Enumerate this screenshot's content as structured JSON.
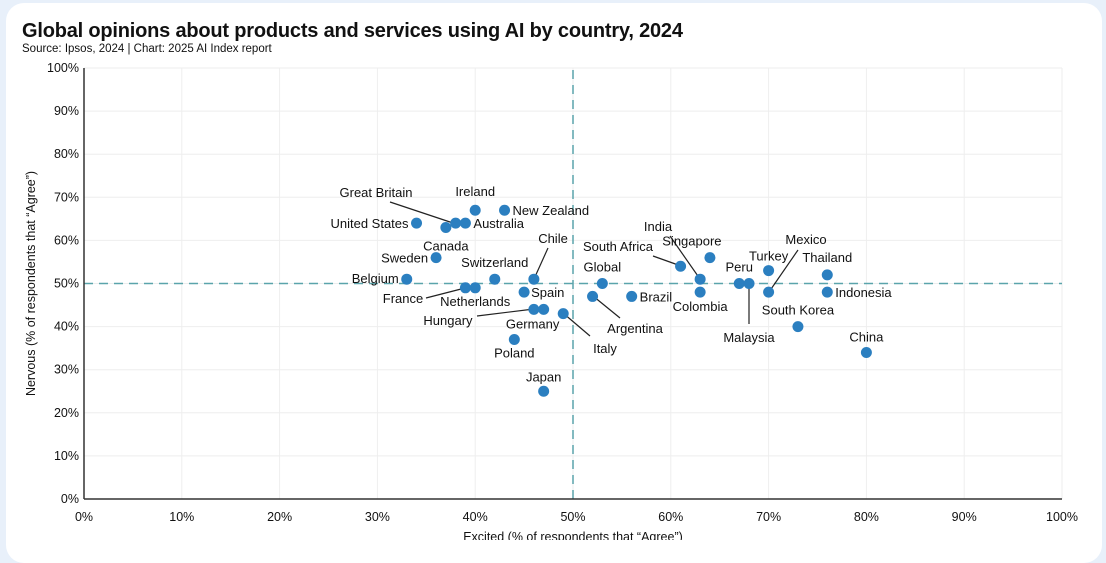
{
  "chart_data": {
    "type": "scatter",
    "title": "Global opinions about products and services using AI by country, 2024",
    "subtitle": "Source: Ipsos, 2024 | Chart: 2025 AI Index report",
    "xlabel": "Excited (% of respondents that “Agree”)",
    "ylabel": "Nervous (% of respondents that “Agree”)",
    "xlim": [
      0,
      100
    ],
    "ylim": [
      0,
      100
    ],
    "x_ticks": [
      "0%",
      "10%",
      "20%",
      "30%",
      "40%",
      "50%",
      "60%",
      "70%",
      "80%",
      "90%",
      "100%"
    ],
    "y_ticks": [
      "0%",
      "10%",
      "20%",
      "30%",
      "40%",
      "50%",
      "60%",
      "70%",
      "80%",
      "90%",
      "100%"
    ],
    "reference_lines": {
      "x": 50,
      "y": 50
    },
    "grid": true,
    "colors": {
      "point": "#2b7fc0",
      "reference": "#5aa4ab",
      "axis": "#333333",
      "grid": "#eeeeee"
    },
    "points": [
      {
        "label": "United States",
        "x": 34,
        "y": 64
      },
      {
        "label": "Canada",
        "x": 37,
        "y": 63
      },
      {
        "label": "Great Britain",
        "x": 38,
        "y": 64
      },
      {
        "label": "Australia",
        "x": 39,
        "y": 64
      },
      {
        "label": "Ireland",
        "x": 40,
        "y": 67
      },
      {
        "label": "New Zealand",
        "x": 43,
        "y": 67
      },
      {
        "label": "Sweden",
        "x": 36,
        "y": 56
      },
      {
        "label": "Belgium",
        "x": 33,
        "y": 51
      },
      {
        "label": "France",
        "x": 39,
        "y": 49
      },
      {
        "label": "Netherlands",
        "x": 40,
        "y": 49
      },
      {
        "label": "Switzerland",
        "x": 42,
        "y": 51
      },
      {
        "label": "Chile",
        "x": 46,
        "y": 51
      },
      {
        "label": "Spain",
        "x": 45,
        "y": 48
      },
      {
        "label": "Hungary",
        "x": 46,
        "y": 44
      },
      {
        "label": "Germany",
        "x": 47,
        "y": 44
      },
      {
        "label": "Italy",
        "x": 49,
        "y": 43
      },
      {
        "label": "Poland",
        "x": 44,
        "y": 37
      },
      {
        "label": "Japan",
        "x": 47,
        "y": 25
      },
      {
        "label": "Global",
        "x": 53,
        "y": 50
      },
      {
        "label": "Argentina",
        "x": 52,
        "y": 47
      },
      {
        "label": "Brazil",
        "x": 56,
        "y": 47
      },
      {
        "label": "South Africa",
        "x": 61,
        "y": 54
      },
      {
        "label": "India",
        "x": 63,
        "y": 51
      },
      {
        "label": "Colombia",
        "x": 63,
        "y": 48
      },
      {
        "label": "Singapore",
        "x": 64,
        "y": 56
      },
      {
        "label": "Peru",
        "x": 67,
        "y": 50
      },
      {
        "label": "Malaysia",
        "x": 68,
        "y": 50
      },
      {
        "label": "Turkey",
        "x": 70,
        "y": 53
      },
      {
        "label": "Mexico",
        "x": 70,
        "y": 48
      },
      {
        "label": "Thailand",
        "x": 76,
        "y": 52
      },
      {
        "label": "Indonesia",
        "x": 76,
        "y": 48
      },
      {
        "label": "South Korea",
        "x": 73,
        "y": 40
      },
      {
        "label": "China",
        "x": 80,
        "y": 34
      }
    ]
  }
}
